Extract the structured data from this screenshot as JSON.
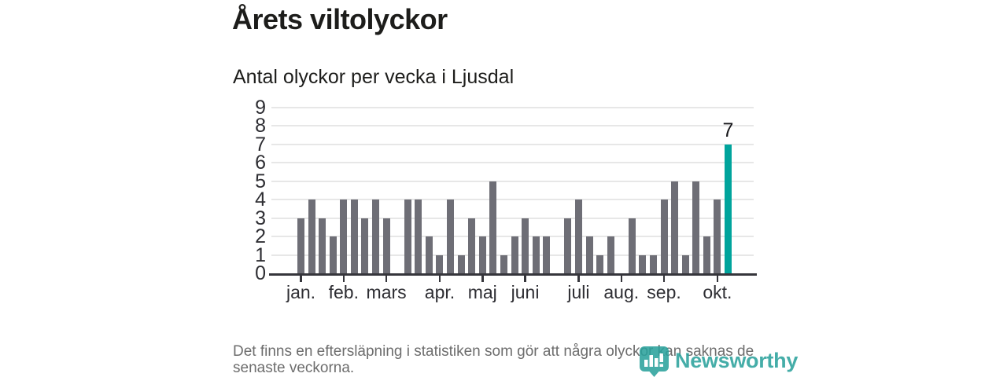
{
  "header": {
    "title": "Årets viltolyckor",
    "subtitle": "Antal olyckor per vecka i Ljusdal"
  },
  "chart_data": {
    "type": "bar",
    "title": "Årets viltolyckor",
    "subtitle": "Antal olyckor per vecka i Ljusdal",
    "unit": "olyckor per vecka",
    "ylim": [
      0,
      9
    ],
    "y_ticks": [
      0,
      1,
      2,
      3,
      4,
      5,
      6,
      7,
      8,
      9
    ],
    "grid": true,
    "values": [
      3,
      4,
      3,
      2,
      4,
      4,
      3,
      4,
      3,
      0,
      4,
      4,
      2,
      1,
      4,
      1,
      3,
      2,
      5,
      1,
      2,
      3,
      2,
      2,
      0,
      3,
      4,
      2,
      1,
      2,
      0,
      3,
      1,
      1,
      4,
      5,
      1,
      5,
      2,
      4,
      7
    ],
    "months": [
      {
        "label": "jan.",
        "week_index": 0
      },
      {
        "label": "feb.",
        "week_index": 4
      },
      {
        "label": "mars",
        "week_index": 8
      },
      {
        "label": "apr.",
        "week_index": 13
      },
      {
        "label": "maj",
        "week_index": 17
      },
      {
        "label": "juni",
        "week_index": 21
      },
      {
        "label": "juli",
        "week_index": 26
      },
      {
        "label": "aug.",
        "week_index": 30
      },
      {
        "label": "sep.",
        "week_index": 34
      },
      {
        "label": "okt.",
        "week_index": 39
      }
    ],
    "highlight_last": true,
    "highlight_value_label": "7",
    "bar_color": "#6e6e76",
    "highlight_color": "#00a49c",
    "legend_position": "none"
  },
  "footer": {
    "note": "Det finns en eftersläpning i statistiken som gör att några olyckor kan saknas de senaste veckorna."
  },
  "branding": {
    "logo_text": "Newsworthy",
    "logo_icon": "newsworthy-pin-barchart-icon",
    "brand_color": "#2aa19c"
  }
}
